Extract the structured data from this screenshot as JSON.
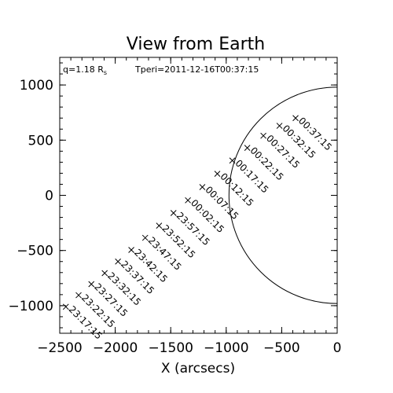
{
  "chart_data": {
    "type": "scatter",
    "title": "View from Earth",
    "xlabel": "X (arcsecs)",
    "ylabel": "",
    "xlim": [
      -2500,
      0
    ],
    "ylim": [
      -1250,
      1250
    ],
    "xticks": [
      "−2500",
      "−2000",
      "−1500",
      "−1000",
      "−500",
      "0"
    ],
    "yticks": [
      "1000",
      "500",
      "0",
      "−500",
      "−1000"
    ],
    "annotation_left": "q=1.18 R",
    "annotation_left_sub": "s",
    "annotation_right": "Tperi=2011-12-16T00:37:15",
    "solar_disk_radius_arcsec": 975,
    "marker": "x",
    "points": [
      {
        "label": "23:17:15",
        "x": -2445,
        "y": -1010
      },
      {
        "label": "23:22:15",
        "x": -2330,
        "y": -905
      },
      {
        "label": "23:27:15",
        "x": -2215,
        "y": -805
      },
      {
        "label": "23:32:15",
        "x": -2095,
        "y": -705
      },
      {
        "label": "23:37:15",
        "x": -1975,
        "y": -600
      },
      {
        "label": "23:42:15",
        "x": -1855,
        "y": -495
      },
      {
        "label": "23:47:15",
        "x": -1730,
        "y": -385
      },
      {
        "label": "23:52:15",
        "x": -1605,
        "y": -275
      },
      {
        "label": "23:57:15",
        "x": -1475,
        "y": -160
      },
      {
        "label": "00:02:15",
        "x": -1345,
        "y": -45
      },
      {
        "label": "00:07:15",
        "x": -1215,
        "y": 75
      },
      {
        "label": "00:12:15",
        "x": -1080,
        "y": 195
      },
      {
        "label": "00:17:15",
        "x": -945,
        "y": 315
      },
      {
        "label": "00:22:15",
        "x": -810,
        "y": 430
      },
      {
        "label": "00:27:15",
        "x": -665,
        "y": 540
      },
      {
        "label": "00:32:15",
        "x": -520,
        "y": 630
      },
      {
        "label": "00:37:15",
        "x": -375,
        "y": 700
      }
    ]
  }
}
